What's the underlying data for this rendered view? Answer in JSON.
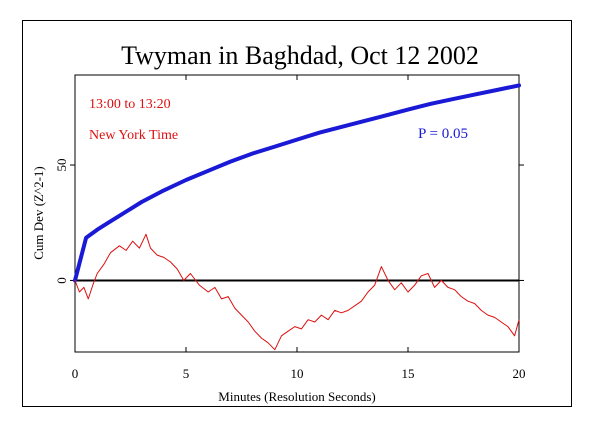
{
  "chart_data": {
    "type": "line",
    "title": "Twyman in Baghdad, Oct 12 2002",
    "xlabel": "Minutes (Resolution Seconds)",
    "ylabel": "Cum Dev (Z^2-1)",
    "xlim": [
      0,
      20
    ],
    "ylim": [
      -31,
      89
    ],
    "xticks": [
      0,
      5,
      10,
      15,
      20
    ],
    "yticks": [
      0,
      50
    ],
    "grid": false,
    "reference_line": 0,
    "annotations": [
      "13:00 to 13:20",
      "New York Time",
      "P = 0.05"
    ],
    "series": [
      {
        "name": "",
        "role": "probability envelope",
        "color": "#1a1ad6",
        "x": [
          0,
          0.5,
          1,
          1.5,
          2,
          2.5,
          3,
          4,
          5,
          6,
          7,
          8,
          9,
          10,
          11,
          12,
          13,
          14,
          15,
          16,
          17,
          18,
          19,
          20
        ],
        "y": [
          0,
          18.5,
          22,
          25,
          28,
          31,
          34,
          39,
          43.5,
          47.5,
          51.5,
          55,
          58,
          61,
          64,
          66.5,
          69,
          71.5,
          74,
          76.5,
          78.5,
          80.5,
          82.5,
          84.5
        ]
      },
      {
        "name": "",
        "role": "cumulative deviation",
        "color": "#dd1010",
        "x": [
          0,
          0.2,
          0.4,
          0.6,
          0.8,
          1.0,
          1.3,
          1.6,
          2.0,
          2.3,
          2.6,
          2.9,
          3.2,
          3.4,
          3.7,
          4.0,
          4.3,
          4.6,
          4.9,
          5.2,
          5.6,
          6.0,
          6.3,
          6.6,
          6.9,
          7.2,
          7.5,
          7.8,
          8.1,
          8.4,
          8.7,
          9.0,
          9.3,
          9.6,
          9.9,
          10.2,
          10.5,
          10.8,
          11.1,
          11.4,
          11.7,
          12.0,
          12.3,
          12.6,
          12.9,
          13.2,
          13.5,
          13.8,
          14.1,
          14.4,
          14.7,
          15.0,
          15.3,
          15.6,
          15.9,
          16.2,
          16.5,
          16.8,
          17.1,
          17.4,
          17.7,
          18.0,
          18.3,
          18.6,
          18.9,
          19.2,
          19.5,
          19.8,
          20.0
        ],
        "y": [
          0,
          -5,
          -3,
          -8,
          -2,
          3,
          7,
          12,
          15,
          13,
          17,
          14,
          20,
          14,
          11,
          10,
          8,
          5,
          0,
          3,
          -2,
          -5,
          -3,
          -8,
          -7,
          -12,
          -15,
          -18,
          -22,
          -25,
          -27,
          -30,
          -24,
          -22,
          -20,
          -21,
          -17,
          -18,
          -15,
          -17,
          -13,
          -14,
          -13,
          -11,
          -9,
          -5,
          -2,
          6,
          0,
          -4,
          -1,
          -5,
          -2,
          2,
          3,
          -3,
          0,
          -3,
          -4,
          -7,
          -9,
          -10,
          -13,
          -15,
          -16,
          -18,
          -20,
          -24,
          -17
        ]
      }
    ]
  }
}
